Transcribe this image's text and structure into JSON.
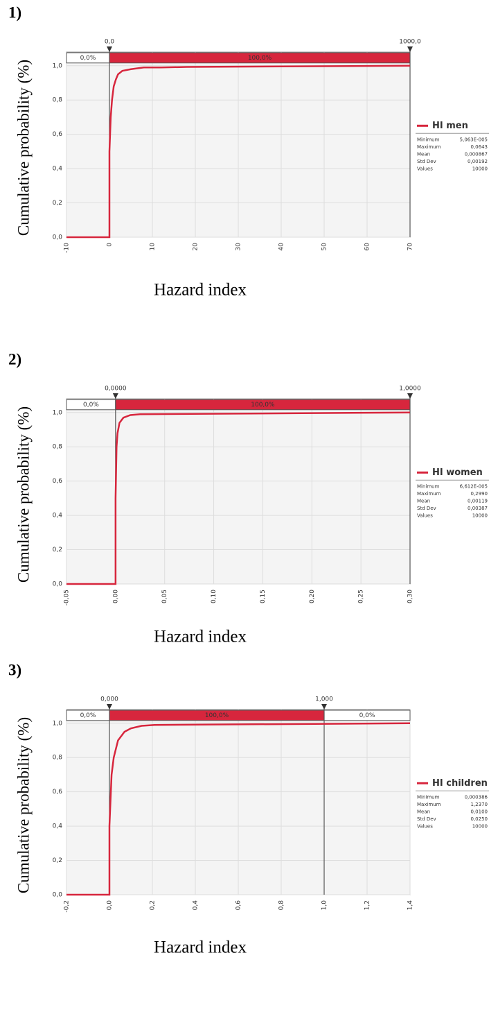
{
  "chart_data": [
    {
      "type": "line",
      "panel_label": "1)",
      "ylabel": "Cumulative probability (%)",
      "xlabel": "Hazard index",
      "xlim": [
        -10,
        70
      ],
      "xticks": [
        -10,
        0,
        10,
        20,
        30,
        40,
        50,
        60,
        70
      ],
      "ylim": [
        0,
        1.08
      ],
      "yticks": [
        {
          "value": 0,
          "label": "0,0"
        },
        {
          "value": 0.2,
          "label": "0,2"
        },
        {
          "value": 0.4,
          "label": "0,4"
        },
        {
          "value": 0.6,
          "label": "0,6"
        },
        {
          "value": 0.8,
          "label": "0,8"
        },
        {
          "value": 1,
          "label": "1,0"
        }
      ],
      "grid": true,
      "delimiters": [
        {
          "value": 0,
          "label": "0,0"
        },
        {
          "value": 1000,
          "label": "1000,0"
        }
      ],
      "bands": [
        {
          "value": 0,
          "label": "0,0%"
        },
        {
          "value": 100,
          "label": "100,0%"
        }
      ],
      "series": [
        {
          "name": "HI men",
          "color": "#d7263d",
          "x": [
            -10,
            0,
            0,
            0.3,
            0.6,
            1,
            1.5,
            2,
            3,
            5,
            8,
            12,
            18,
            70
          ],
          "y": [
            0,
            0,
            0.5,
            0.7,
            0.8,
            0.88,
            0.92,
            0.95,
            0.97,
            0.98,
            0.99,
            0.99,
            0.993,
            1.0
          ]
        }
      ],
      "stats": [
        {
          "name": "Minimum",
          "value": 5.063e-05,
          "label": "5,063E-005"
        },
        {
          "name": "Maximum",
          "value": 0.0643,
          "label": "0,0643"
        },
        {
          "name": "Mean",
          "value": 0.000867,
          "label": "0,000867"
        },
        {
          "name": "Std Dev",
          "value": 0.00192,
          "label": "0,00192"
        },
        {
          "name": "Values",
          "value": 10000
        }
      ]
    },
    {
      "type": "line",
      "panel_label": "2)",
      "ylabel": "Cumulative probability (%)",
      "xlabel": "Hazard index",
      "xlim": [
        -0.05,
        0.3
      ],
      "xticks": [
        {
          "value": -0.05,
          "label": "-0,05"
        },
        {
          "value": 0,
          "label": "0,00"
        },
        {
          "value": 0.05,
          "label": "0,05"
        },
        {
          "value": 0.1,
          "label": "0,10"
        },
        {
          "value": 0.15,
          "label": "0,15"
        },
        {
          "value": 0.2,
          "label": "0,20"
        },
        {
          "value": 0.25,
          "label": "0,25"
        },
        {
          "value": 0.3,
          "label": "0,30"
        }
      ],
      "ylim": [
        0,
        1.08
      ],
      "yticks": [
        {
          "value": 0,
          "label": "0,0"
        },
        {
          "value": 0.2,
          "label": "0,2"
        },
        {
          "value": 0.4,
          "label": "0,4"
        },
        {
          "value": 0.6,
          "label": "0,6"
        },
        {
          "value": 0.8,
          "label": "0,8"
        },
        {
          "value": 1,
          "label": "1,0"
        }
      ],
      "grid": true,
      "delimiters": [
        {
          "value": 0,
          "label": "0,0000"
        },
        {
          "value": 1,
          "label": "1,0000"
        }
      ],
      "bands": [
        {
          "value": 0,
          "label": "0,0%"
        },
        {
          "value": 100,
          "label": "100,0%"
        }
      ],
      "series": [
        {
          "name": "HI women",
          "color": "#d7263d",
          "x": [
            -0.05,
            0,
            0,
            0.001,
            0.002,
            0.004,
            0.008,
            0.015,
            0.025,
            0.3
          ],
          "y": [
            0,
            0,
            0.5,
            0.8,
            0.88,
            0.94,
            0.97,
            0.985,
            0.99,
            1.0
          ]
        }
      ],
      "stats": [
        {
          "name": "Minimum",
          "value": 6.612e-05,
          "label": "6,612E-005"
        },
        {
          "name": "Maximum",
          "value": 0.299,
          "label": "0,2990"
        },
        {
          "name": "Mean",
          "value": 0.00119,
          "label": "0,00119"
        },
        {
          "name": "Std Dev",
          "value": 0.00387,
          "label": "0,00387"
        },
        {
          "name": "Values",
          "value": 10000
        }
      ]
    },
    {
      "type": "line",
      "panel_label": "3)",
      "ylabel": "Cumulative probability (%)",
      "xlabel": "Hazard index",
      "xlim": [
        -0.2,
        1.4
      ],
      "xticks": [
        {
          "value": -0.2,
          "label": "-0,2"
        },
        {
          "value": 0,
          "label": "0,0"
        },
        {
          "value": 0.2,
          "label": "0,2"
        },
        {
          "value": 0.4,
          "label": "0,4"
        },
        {
          "value": 0.6,
          "label": "0,6"
        },
        {
          "value": 0.8,
          "label": "0,8"
        },
        {
          "value": 1,
          "label": "1,0"
        },
        {
          "value": 1.2,
          "label": "1,2"
        },
        {
          "value": 1.4,
          "label": "1,4"
        }
      ],
      "ylim": [
        0,
        1.08
      ],
      "yticks": [
        {
          "value": 0,
          "label": "0,0"
        },
        {
          "value": 0.2,
          "label": "0,2"
        },
        {
          "value": 0.4,
          "label": "0,4"
        },
        {
          "value": 0.6,
          "label": "0,6"
        },
        {
          "value": 0.8,
          "label": "0,8"
        },
        {
          "value": 1,
          "label": "1,0"
        }
      ],
      "grid": true,
      "delimiters": [
        {
          "value": 0,
          "label": "0,000"
        },
        {
          "value": 1,
          "label": "1,000"
        }
      ],
      "bands": [
        {
          "value": 0,
          "label": "0,0%"
        },
        {
          "value": 100,
          "label": "100,0%"
        },
        {
          "value": 0,
          "label": "0,0%"
        }
      ],
      "series": [
        {
          "name": "HI children",
          "color": "#d7263d",
          "x": [
            -0.2,
            0,
            0,
            0.01,
            0.02,
            0.04,
            0.07,
            0.1,
            0.15,
            0.21,
            1.4
          ],
          "y": [
            0,
            0,
            0.4,
            0.7,
            0.8,
            0.9,
            0.95,
            0.97,
            0.985,
            0.99,
            1.0
          ]
        }
      ],
      "stats": [
        {
          "name": "Minimum",
          "value": 0.000386,
          "label": "0,000386"
        },
        {
          "name": "Maximum",
          "value": 1.237,
          "label": "1,2370"
        },
        {
          "name": "Mean",
          "value": 0.01,
          "label": "0,0100"
        },
        {
          "name": "Std Dev",
          "value": 0.025,
          "label": "0,0250"
        },
        {
          "name": "Values",
          "value": 10000
        }
      ]
    }
  ]
}
